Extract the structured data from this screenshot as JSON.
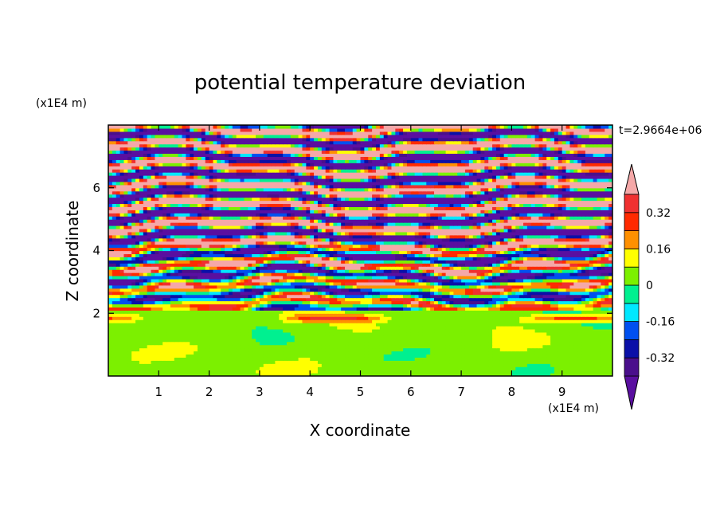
{
  "chart_data": {
    "type": "heatmap",
    "title": "potential temperature deviation",
    "xlabel": "X coordinate",
    "ylabel": "Z coordinate",
    "x_units": "(x1E4 m)",
    "y_units": "(x1E4 m)",
    "time_label": "t=2.9664e+06",
    "xlim": [
      0,
      10
    ],
    "ylim": [
      0,
      8
    ],
    "x_ticks": [
      1,
      2,
      3,
      4,
      5,
      6,
      7,
      8,
      9
    ],
    "y_ticks": [
      2,
      4,
      6
    ],
    "x_tick_labels": [
      "1",
      "2",
      "3",
      "4",
      "5",
      "6",
      "7",
      "8",
      "9"
    ],
    "y_tick_labels": [
      "2",
      "4",
      "6"
    ],
    "colorbar": {
      "levels": [
        -0.4,
        -0.32,
        -0.24,
        -0.16,
        -0.08,
        0,
        0.08,
        0.16,
        0.24,
        0.32,
        0.4
      ],
      "colors": [
        "#5a0fa0",
        "#4a0f8c",
        "#0a10a8",
        "#0050f0",
        "#00e8ff",
        "#00f090",
        "#7cf000",
        "#ffff00",
        "#ff9000",
        "#ff2a00",
        "#f03030",
        "#f5a8a8"
      ],
      "labels": [
        "0.32",
        "0.16",
        "0",
        "-0.16",
        "-0.32"
      ],
      "label_values": [
        0.32,
        0.16,
        0,
        -0.16,
        -0.32
      ],
      "extend": "both"
    },
    "description_layers": {
      "lower_layer_top_z": 2.1,
      "stratified_layer_top_z": 8.0
    }
  }
}
